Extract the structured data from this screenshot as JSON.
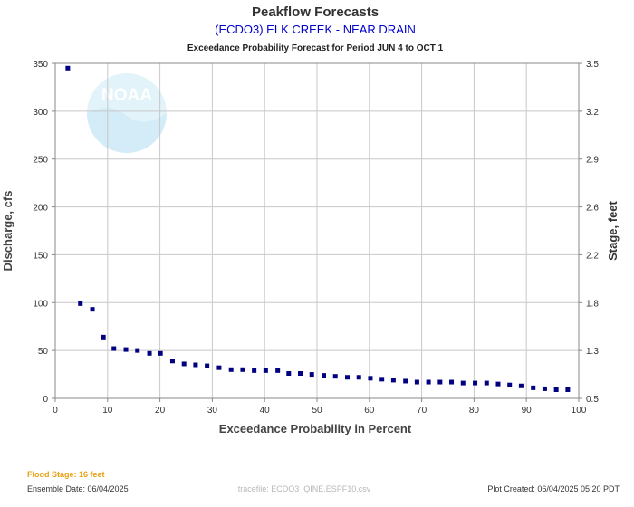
{
  "header": {
    "title": "Peakflow Forecasts",
    "station": "(ECDO3) ELK CREEK - NEAR DRAIN",
    "subtitle": "Exceedance Probability Forecast for Period JUN 4 to OCT 1"
  },
  "footer": {
    "flood_stage": "Flood Stage: 16 feet",
    "ensemble_date": "Ensemble Date: 06/04/2025",
    "tracefile": "tracefile: ECDO3_QINE.ESPF10.csv",
    "plot_created": "Plot Created: 06/04/2025 05:20 PDT"
  },
  "watermark": {
    "label": "NOAA",
    "icon": "noaa-logo-icon"
  },
  "colors": {
    "title": "#333333",
    "station": "#0000cc",
    "marker": "#000080",
    "flood_stage": "#e8a010",
    "grid": "#c8c8c8",
    "footer_text": "#333333",
    "tracefile": "#b8b8b8"
  },
  "chart_data": {
    "type": "scatter",
    "title": "Peakflow Forecasts",
    "xlabel": "Exceedance Probability in Percent",
    "ylabel": "Discharge, cfs",
    "y2label": "Stage, feet",
    "xlim": [
      0,
      100
    ],
    "ylim": [
      0,
      350
    ],
    "grid": true,
    "x_ticks": [
      "0",
      "10",
      "20",
      "30",
      "40",
      "50",
      "60",
      "70",
      "80",
      "90",
      "100"
    ],
    "y_ticks": [
      "0",
      "50",
      "100",
      "150",
      "200",
      "250",
      "300",
      "350"
    ],
    "y2_ticks": [
      {
        "label": "0.5",
        "discharge": 0
      },
      {
        "label": "1.3",
        "discharge": 50
      },
      {
        "label": "1.8",
        "discharge": 100
      },
      {
        "label": "2.2",
        "discharge": 150
      },
      {
        "label": "2.6",
        "discharge": 200
      },
      {
        "label": "2.9",
        "discharge": 250
      },
      {
        "label": "3.2",
        "discharge": 300
      },
      {
        "label": "3.5",
        "discharge": 350
      }
    ],
    "x": [
      2.4,
      4.8,
      7.1,
      9.2,
      11.2,
      13.5,
      15.7,
      18.0,
      20.1,
      22.4,
      24.6,
      26.8,
      29.0,
      31.3,
      33.6,
      35.8,
      38.0,
      40.2,
      42.5,
      44.6,
      46.8,
      49.0,
      51.3,
      53.5,
      55.8,
      58.0,
      60.2,
      62.4,
      64.6,
      66.9,
      69.1,
      71.3,
      73.5,
      75.7,
      77.9,
      80.2,
      82.4,
      84.6,
      86.8,
      89.0,
      91.3,
      93.5,
      95.7,
      97.9
    ],
    "y": [
      345,
      99,
      93,
      64,
      52,
      51,
      50,
      47,
      47,
      39,
      36,
      35,
      34,
      32,
      30,
      30,
      29,
      29,
      29,
      26,
      26,
      25,
      24,
      23,
      22,
      22,
      21,
      20,
      19,
      18,
      17,
      17,
      17,
      17,
      16,
      16,
      16,
      15,
      14,
      13,
      11,
      10,
      9,
      9
    ]
  }
}
